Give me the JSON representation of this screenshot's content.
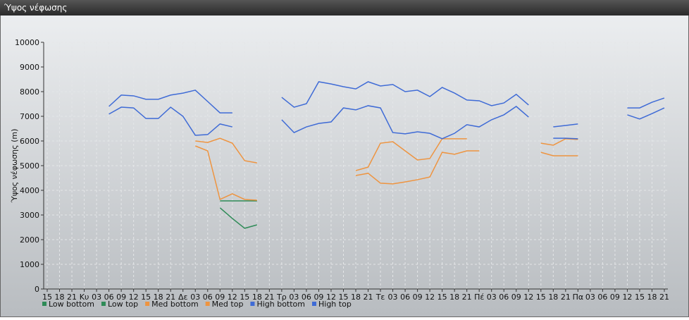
{
  "chart_data": {
    "type": "line",
    "title": "Ύψος νέφωσης",
    "ylabel": "Ύψος νέφωσης (m)",
    "categories": [
      "15",
      "18",
      "21",
      "Κυ",
      "03",
      "06",
      "09",
      "12",
      "15",
      "18",
      "21",
      "Δε",
      "03",
      "06",
      "09",
      "12",
      "15",
      "18",
      "21",
      "Τρ",
      "03",
      "06",
      "09",
      "12",
      "15",
      "18",
      "21",
      "Τε",
      "03",
      "06",
      "09",
      "12",
      "15",
      "18",
      "21",
      "Πέ",
      "03",
      "06",
      "09",
      "12",
      "15",
      "18",
      "21",
      "Πα",
      "03",
      "06",
      "09",
      "12",
      "15",
      "18",
      "21"
    ],
    "ylim": [
      0,
      10000
    ],
    "yticks": [
      0,
      1000,
      2000,
      3000,
      4000,
      5000,
      6000,
      7000,
      8000,
      9000,
      10000
    ],
    "grid": true,
    "legend": "bottom-left",
    "series": [
      {
        "name": "Low bottom",
        "color": "#2e8b57",
        "values": [
          null,
          null,
          null,
          null,
          null,
          null,
          null,
          null,
          null,
          null,
          null,
          null,
          null,
          null,
          3290,
          2860,
          2460,
          2600,
          null,
          null,
          null,
          null,
          null,
          null,
          null,
          null,
          null,
          null,
          null,
          null,
          null,
          null,
          null,
          null,
          null,
          null,
          null,
          null,
          null,
          null,
          null,
          null,
          null,
          null,
          null,
          null,
          null,
          null,
          null,
          null,
          null
        ]
      },
      {
        "name": "Low top",
        "color": "#2e8b57",
        "values": [
          null,
          null,
          null,
          null,
          null,
          null,
          null,
          null,
          null,
          null,
          null,
          null,
          null,
          null,
          3570,
          3570,
          3570,
          3570,
          null,
          null,
          null,
          null,
          null,
          null,
          null,
          null,
          null,
          null,
          null,
          null,
          null,
          null,
          null,
          null,
          null,
          null,
          null,
          null,
          null,
          null,
          null,
          null,
          null,
          null,
          null,
          null,
          null,
          null,
          null,
          null,
          null
        ]
      },
      {
        "name": "Med bottom",
        "color": "#ee9440",
        "values": [
          null,
          null,
          null,
          null,
          null,
          null,
          null,
          null,
          null,
          null,
          null,
          null,
          5800,
          5600,
          3630,
          3860,
          3630,
          3600,
          null,
          null,
          null,
          null,
          null,
          null,
          null,
          4600,
          4690,
          4290,
          4260,
          4340,
          4430,
          4540,
          5540,
          5460,
          5600,
          5600,
          null,
          null,
          null,
          null,
          5540,
          5400,
          5400,
          5400,
          null,
          null,
          null,
          null,
          null,
          null,
          null
        ]
      },
      {
        "name": "Med top",
        "color": "#ee9440",
        "values": [
          null,
          null,
          null,
          null,
          null,
          null,
          null,
          null,
          null,
          null,
          null,
          null,
          6000,
          5940,
          6110,
          5910,
          5200,
          5110,
          null,
          null,
          null,
          null,
          null,
          null,
          null,
          4800,
          4940,
          5910,
          5970,
          5600,
          5230,
          5290,
          6090,
          6090,
          6090,
          null,
          null,
          null,
          null,
          null,
          5910,
          5830,
          6090,
          6060,
          null,
          null,
          null,
          null,
          null,
          null,
          null
        ]
      },
      {
        "name": "High bottom",
        "color": "#3f6bd6",
        "values": [
          null,
          null,
          null,
          null,
          null,
          7090,
          7370,
          7340,
          6910,
          6910,
          7370,
          7000,
          6230,
          6260,
          6690,
          6570,
          null,
          null,
          null,
          6860,
          6340,
          6570,
          6710,
          6770,
          7340,
          7260,
          7430,
          7340,
          6340,
          6290,
          6370,
          6310,
          6090,
          6310,
          6660,
          6570,
          6860,
          7060,
          7400,
          6970,
          null,
          6110,
          6110,
          6090,
          null,
          null,
          null,
          7060,
          6890,
          7110,
          7340
        ]
      },
      {
        "name": "High top",
        "color": "#3f6bd6",
        "values": [
          null,
          null,
          null,
          null,
          null,
          7400,
          7860,
          7830,
          7690,
          7690,
          7860,
          7940,
          8060,
          7600,
          7140,
          7140,
          null,
          null,
          null,
          7770,
          7370,
          7510,
          8400,
          8310,
          8200,
          8110,
          8400,
          8230,
          8290,
          8000,
          8060,
          7800,
          8170,
          7940,
          7660,
          7630,
          7430,
          7540,
          7890,
          7460,
          null,
          6570,
          6630,
          6690,
          null,
          null,
          null,
          7340,
          7340,
          7570,
          7740
        ]
      }
    ]
  }
}
